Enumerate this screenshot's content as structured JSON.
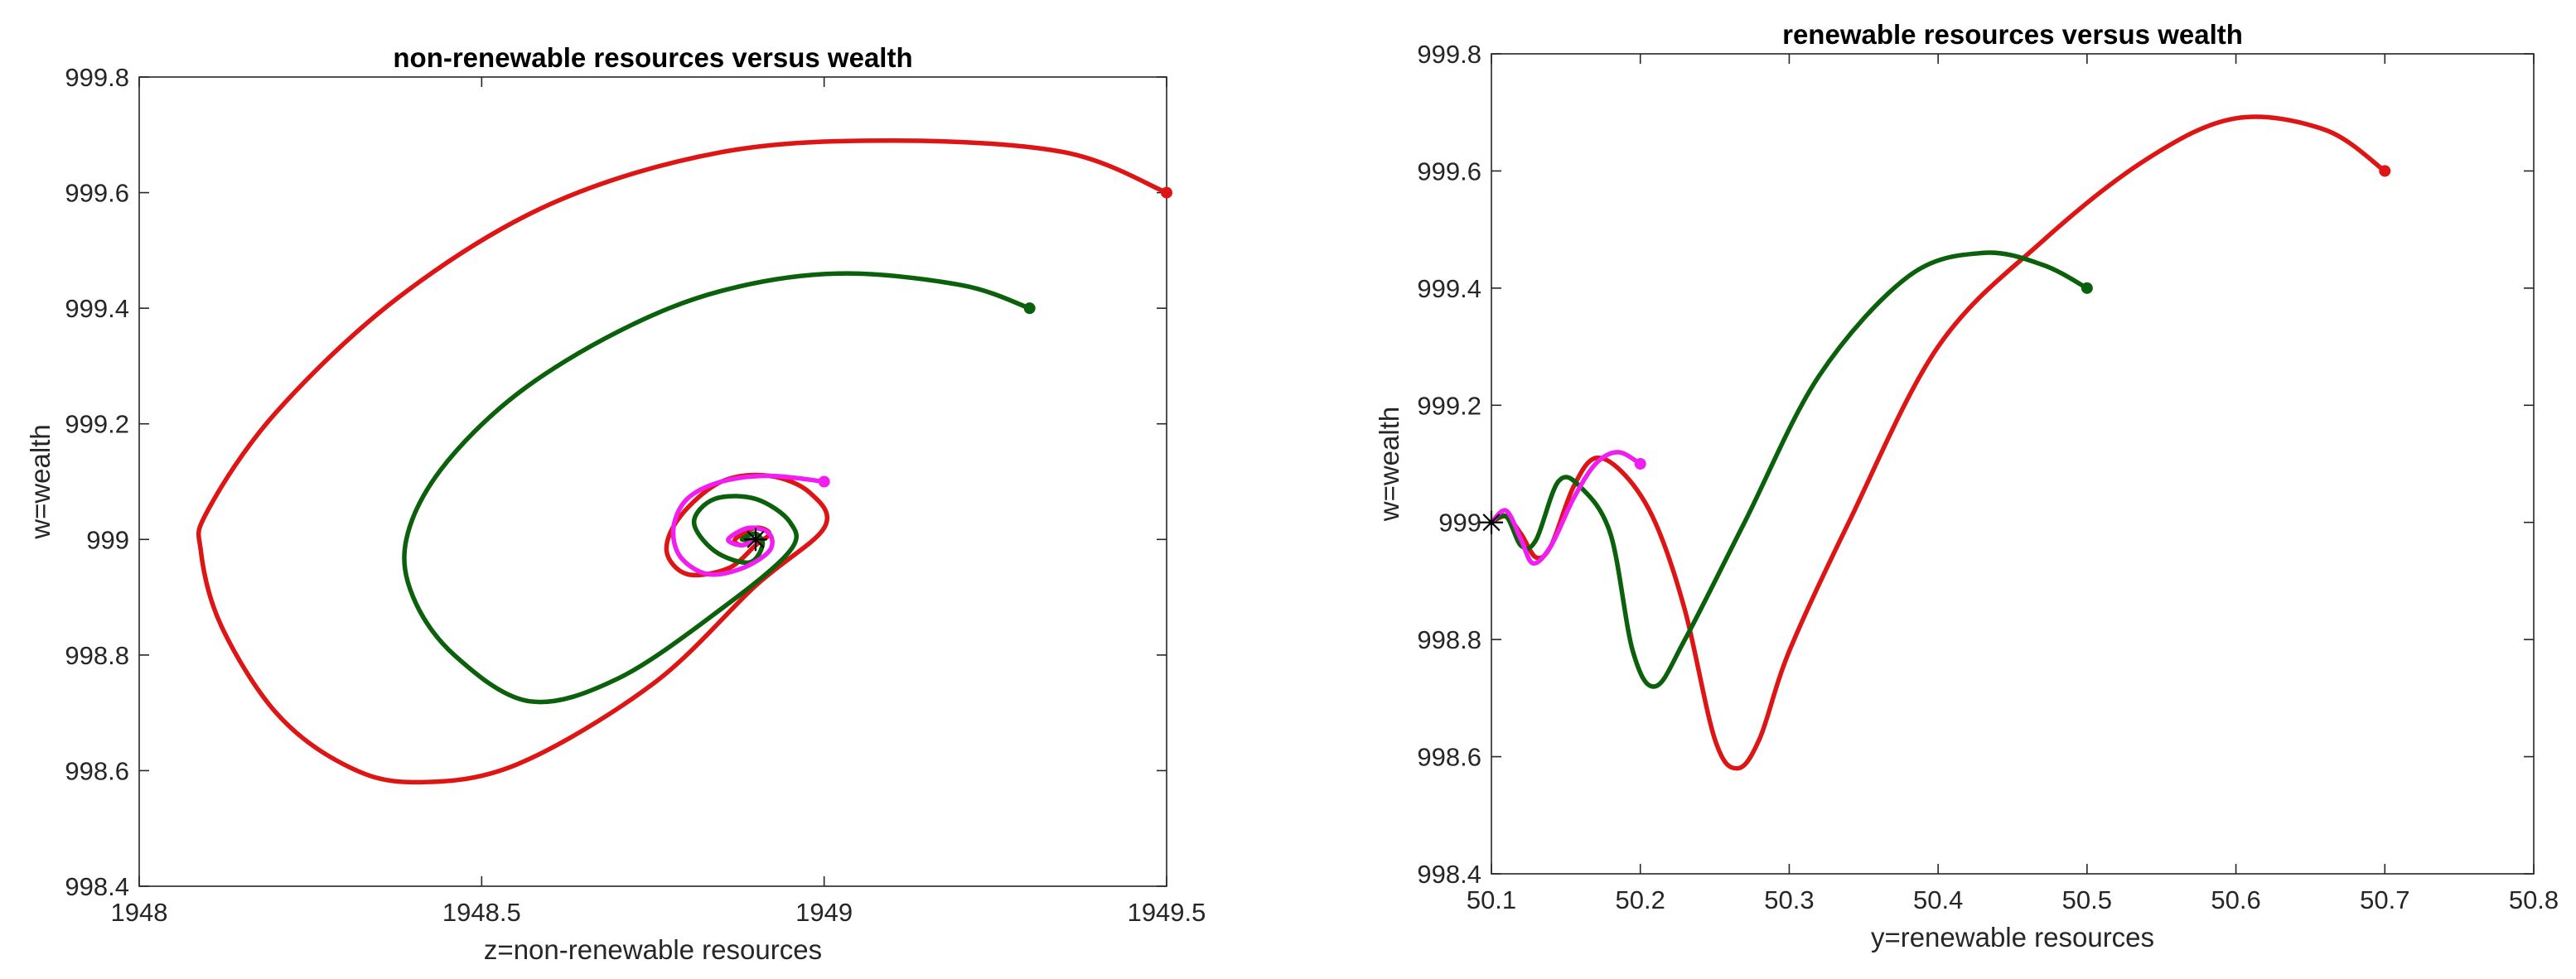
{
  "chart_data": [
    {
      "type": "line",
      "title": "non-renewable resources versus wealth",
      "xlabel": "z=non-renewable resources",
      "ylabel": "w=wealth",
      "xlim": [
        1948,
        1949.5
      ],
      "ylim": [
        998.4,
        999.8
      ],
      "xticks": [
        1948,
        1948.5,
        1949,
        1949.5
      ],
      "xtick_labels": [
        "1948",
        "1948.5",
        "1949",
        "1949.5"
      ],
      "yticks": [
        998.4,
        998.6,
        998.8,
        999,
        999.2,
        999.4,
        999.6,
        999.8
      ],
      "ytick_labels": [
        "998.4",
        "998.6",
        "998.8",
        "999",
        "999.2",
        "999.4",
        "999.6",
        "999.8"
      ],
      "grid": false,
      "equilibrium": {
        "x": 1948.9,
        "y": 999.0,
        "marker": "*"
      },
      "series": [
        {
          "color": "#dd1515",
          "start": {
            "x": 1949.5,
            "y": 999.6
          },
          "x": [
            1949.5,
            1949.35,
            1949.1,
            1948.85,
            1948.6,
            1948.38,
            1948.2,
            1948.1,
            1948.09,
            1948.12,
            1948.2,
            1948.3,
            1948.4,
            1948.55,
            1948.75,
            1948.9,
            1949.0,
            1948.98,
            1948.92,
            1948.85,
            1948.79,
            1948.77,
            1948.8,
            1948.86,
            1948.9,
            1948.92,
            1948.9,
            1948.87,
            1948.88,
            1948.9
          ],
          "y": [
            999.6,
            999.67,
            999.69,
            999.67,
            999.58,
            999.42,
            999.22,
            999.05,
            998.98,
            998.85,
            998.7,
            998.61,
            998.58,
            998.61,
            998.75,
            998.92,
            999.02,
            999.08,
            999.11,
            999.1,
            999.04,
            998.98,
            998.94,
            998.95,
            998.99,
            999.01,
            999.02,
            999.0,
            998.99,
            999.0
          ]
        },
        {
          "color": "#0b610b",
          "start": {
            "x": 1949.3,
            "y": 999.4
          },
          "x": [
            1949.3,
            1949.2,
            1949.02,
            1948.85,
            1948.7,
            1948.55,
            1948.44,
            1948.39,
            1948.4,
            1948.46,
            1948.57,
            1948.7,
            1948.85,
            1948.95,
            1948.95,
            1948.9,
            1948.84,
            1948.81,
            1948.84,
            1948.89,
            1948.91,
            1948.9,
            1948.88,
            1948.9
          ],
          "y": [
            999.4,
            999.44,
            999.46,
            999.43,
            999.36,
            999.25,
            999.12,
            999.0,
            998.9,
            998.8,
            998.72,
            998.76,
            998.88,
            998.98,
            999.03,
            999.07,
            999.07,
            999.03,
            998.98,
            998.96,
            998.99,
            999.01,
            999.0,
            999.0
          ]
        },
        {
          "color": "#f01ef0",
          "start": {
            "x": 1949.0,
            "y": 999.1
          },
          "x": [
            1949.0,
            1948.92,
            1948.85,
            1948.8,
            1948.78,
            1948.79,
            1948.83,
            1948.88,
            1948.92,
            1948.92,
            1948.89,
            1948.86,
            1948.88,
            1948.9
          ],
          "y": [
            999.1,
            999.11,
            999.1,
            999.07,
            999.02,
            998.97,
            998.94,
            998.95,
            998.98,
            999.01,
            999.02,
            999.0,
            998.99,
            999.0
          ]
        }
      ]
    },
    {
      "type": "line",
      "title": "renewable resources versus wealth",
      "xlabel": "y=renewable resources",
      "ylabel": "w=wealth",
      "xlim": [
        50.1,
        50.8
      ],
      "ylim": [
        998.4,
        999.8
      ],
      "xticks": [
        50.1,
        50.2,
        50.3,
        50.4,
        50.5,
        50.6,
        50.7,
        50.8
      ],
      "xtick_labels": [
        "50.1",
        "50.2",
        "50.3",
        "50.4",
        "50.5",
        "50.6",
        "50.7",
        "50.8"
      ],
      "yticks": [
        998.4,
        998.6,
        998.8,
        999,
        999.2,
        999.4,
        999.6,
        999.8
      ],
      "ytick_labels": [
        "998.4",
        "998.6",
        "998.8",
        "999",
        "999.2",
        "999.4",
        "999.6",
        "999.8"
      ],
      "grid": false,
      "equilibrium": {
        "x": 50.1,
        "y": 999.0,
        "marker": "*"
      },
      "series": [
        {
          "color": "#dd1515",
          "start": {
            "x": 50.7,
            "y": 999.6
          },
          "x": [
            50.7,
            50.66,
            50.6,
            50.54,
            50.47,
            50.4,
            50.34,
            50.3,
            50.28,
            50.265,
            50.25,
            50.23,
            50.21,
            50.19,
            50.17,
            50.155,
            50.14,
            50.13,
            50.12,
            50.11,
            50.1
          ],
          "y": [
            999.6,
            999.67,
            999.69,
            999.62,
            999.48,
            999.3,
            999.0,
            998.78,
            998.63,
            998.58,
            998.63,
            998.85,
            999.0,
            999.08,
            999.11,
            999.06,
            998.96,
            998.94,
            998.98,
            999.01,
            999.0
          ]
        },
        {
          "color": "#0b610b",
          "start": {
            "x": 50.5,
            "y": 999.4
          },
          "x": [
            50.5,
            50.47,
            50.43,
            50.38,
            50.32,
            50.27,
            50.23,
            50.21,
            50.195,
            50.18,
            50.16,
            50.145,
            50.13,
            50.12,
            50.11,
            50.1
          ],
          "y": [
            999.4,
            999.44,
            999.46,
            999.42,
            999.25,
            999.0,
            998.8,
            998.72,
            998.78,
            998.98,
            999.06,
            999.07,
            998.97,
            998.96,
            999.01,
            999.0
          ]
        },
        {
          "color": "#f01ef0",
          "start": {
            "x": 50.2,
            "y": 999.1
          },
          "x": [
            50.2,
            50.185,
            50.17,
            50.155,
            50.14,
            50.128,
            50.12,
            50.11,
            50.1
          ],
          "y": [
            999.1,
            999.12,
            999.1,
            999.04,
            998.96,
            998.93,
            998.97,
            999.02,
            999.0
          ]
        }
      ]
    }
  ]
}
